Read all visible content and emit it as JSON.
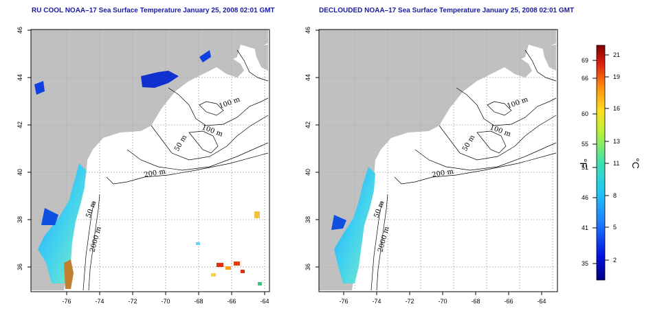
{
  "titles": {
    "left": "RU COOL NOAA–17 Sea Surface Temperature January 25, 2008 02:01 GMT",
    "right": "DECLOUDED NOAA–17 Sea Surface Temperature January 25, 2008 02:01 GMT"
  },
  "axes": {
    "x_ticks": [
      "-76",
      "-74",
      "-72",
      "-70",
      "-68",
      "-66",
      "-64"
    ],
    "y_ticks": [
      "36",
      "38",
      "40",
      "42",
      "44",
      "46"
    ]
  },
  "contours": {
    "left": [
      "100 m",
      "100 m",
      "50 m",
      "200 m",
      "50 m",
      "2000 m"
    ],
    "right": [
      "100 m",
      "100 m",
      "50 m",
      "200 m",
      "50 m",
      "2000 m"
    ]
  },
  "colorbar": {
    "f_label": "°F",
    "c_label": "°C",
    "f_ticks": [
      "69",
      "66",
      "60",
      "55",
      "51",
      "46",
      "41",
      "35"
    ],
    "c_ticks": [
      "21",
      "19",
      "16",
      "13",
      "11",
      "8",
      "5",
      "2"
    ]
  },
  "colors": {
    "land": "#c0c0c0",
    "title": "#1a1aa0",
    "grid": "#aaaaaa",
    "cold": "#1030d0",
    "warm": "#e03010"
  }
}
